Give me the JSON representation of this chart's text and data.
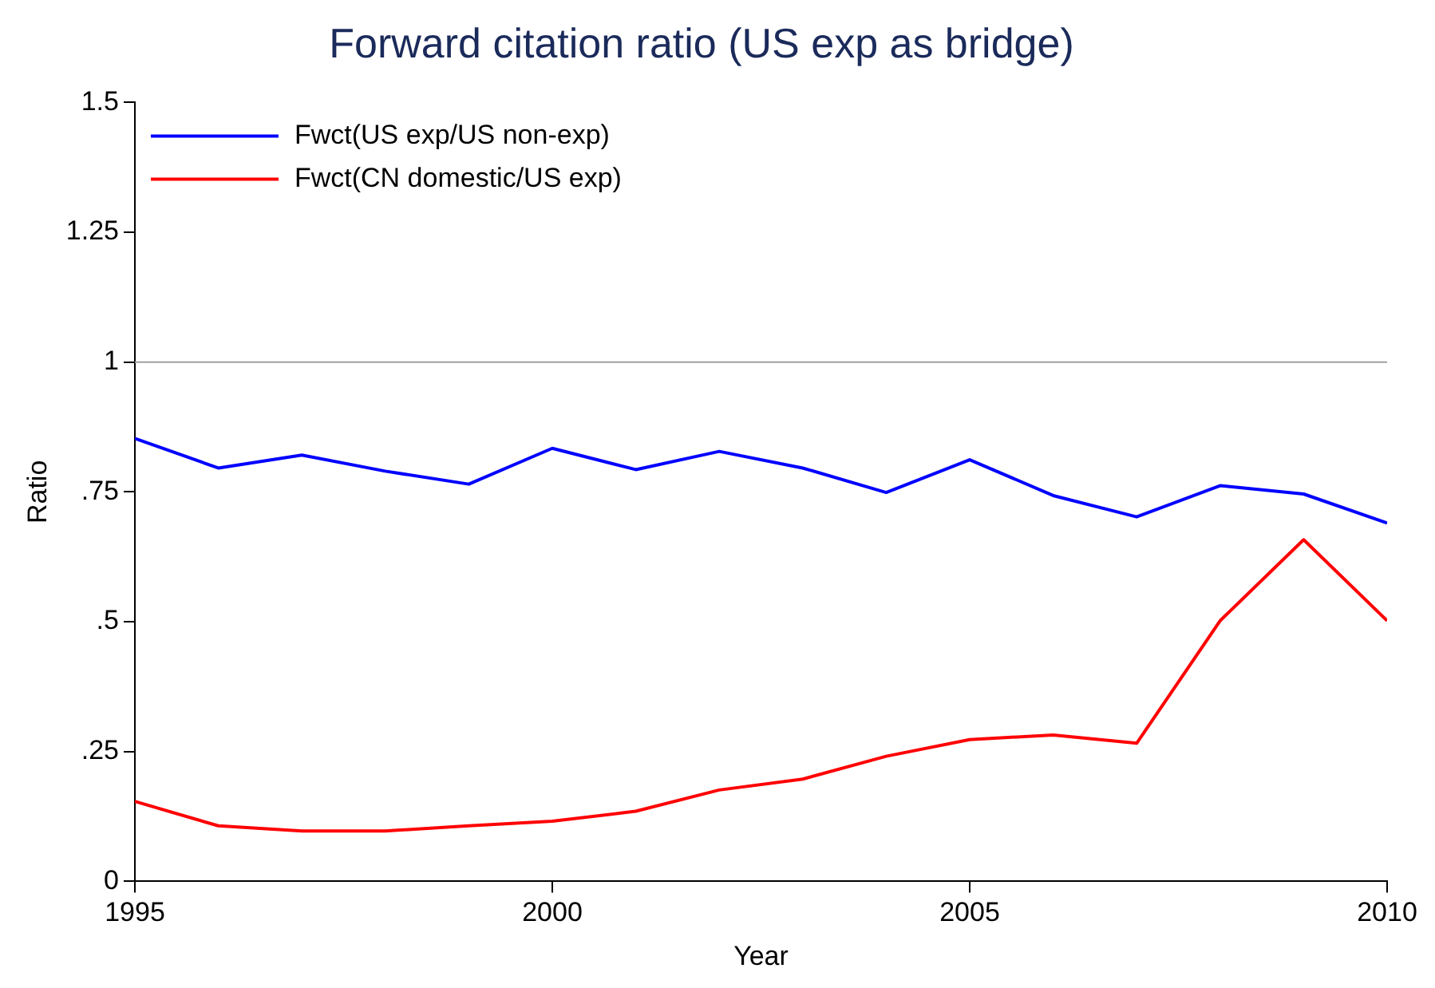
{
  "chart_data": {
    "type": "line",
    "title": "Forward citation ratio (US exp as bridge)",
    "xlabel": "Year",
    "ylabel": "Ratio",
    "x": [
      1995,
      1996,
      1997,
      1998,
      1999,
      2000,
      2001,
      2002,
      2003,
      2004,
      2005,
      2006,
      2007,
      2008,
      2009,
      2010
    ],
    "series": [
      {
        "name": "Fwct(US exp/US non-exp)",
        "color": "#0000ff",
        "values": [
          0.853,
          0.796,
          0.821,
          0.79,
          0.765,
          0.834,
          0.793,
          0.828,
          0.796,
          0.749,
          0.812,
          0.743,
          0.702,
          0.762,
          0.746,
          0.69
        ]
      },
      {
        "name": "Fwct(CN domestic/US exp)",
        "color": "#ff0000",
        "values": [
          0.154,
          0.107,
          0.097,
          0.097,
          0.107,
          0.116,
          0.135,
          0.176,
          0.197,
          0.241,
          0.273,
          0.282,
          0.266,
          0.502,
          0.658,
          0.502
        ]
      }
    ],
    "xlim": [
      1995,
      2010
    ],
    "xticks": [
      1995,
      2000,
      2005,
      2010
    ],
    "ylim": [
      0,
      1.5
    ],
    "yticks": [
      0,
      {
        "value": 0.25,
        "label": ".25"
      },
      {
        "value": 0.5,
        "label": ".5"
      },
      {
        "value": 0.75,
        "label": ".75"
      },
      1,
      1.25,
      1.5
    ],
    "ref_lines": [
      {
        "axis": "y",
        "value": 1,
        "color": "#a0a0a0"
      }
    ],
    "grid": false,
    "legend": "top left",
    "marker": "none",
    "line_style": "solid"
  }
}
